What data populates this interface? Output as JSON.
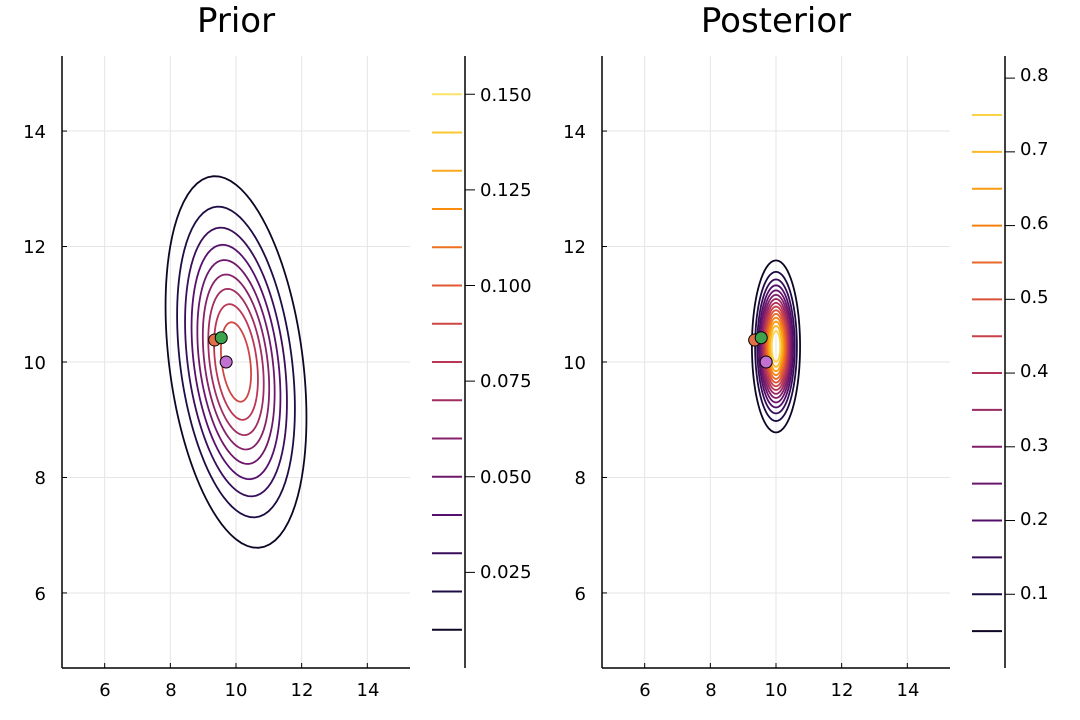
{
  "chart_data": [
    {
      "type": "contour",
      "title": "Prior",
      "xlabel": "",
      "ylabel": "",
      "xlim": [
        4.7,
        15.3
      ],
      "ylim": [
        4.7,
        15.3
      ],
      "xticks": [
        6,
        8,
        10,
        12,
        14
      ],
      "yticks": [
        6,
        8,
        10,
        12,
        14
      ],
      "grid": true,
      "colormap": "inferno",
      "colorbar": {
        "range": [
          0.0,
          0.16
        ],
        "ticks": [
          0.025,
          0.05,
          0.075,
          0.1,
          0.125,
          0.15
        ],
        "tick_labels": [
          "0.025",
          "0.050",
          "0.075",
          "0.100",
          "0.125",
          "0.150"
        ]
      },
      "contour_levels": [
        0.01,
        0.02,
        0.03,
        0.04,
        0.05,
        0.06,
        0.07,
        0.08,
        0.09,
        0.1,
        0.11,
        0.12,
        0.13,
        0.14,
        0.15
      ],
      "distribution": {
        "mean": [
          10.0,
          10.0
        ],
        "std": [
          1.0,
          1.5
        ],
        "corr": -0.3,
        "peak": 0.1
      },
      "points": [
        {
          "x": 9.7,
          "y": 10.0,
          "color": "#c271d2"
        },
        {
          "x": 9.35,
          "y": 10.38,
          "color": "#e26f46"
        },
        {
          "x": 9.55,
          "y": 10.42,
          "color": "#3da44d"
        }
      ]
    },
    {
      "type": "contour",
      "title": "Posterior",
      "xlabel": "",
      "ylabel": "",
      "xlim": [
        4.7,
        15.3
      ],
      "ylim": [
        4.7,
        15.3
      ],
      "xticks": [
        6,
        8,
        10,
        12,
        14
      ],
      "yticks": [
        6,
        8,
        10,
        12,
        14
      ],
      "grid": true,
      "colormap": "inferno",
      "colorbar": {
        "range": [
          0.0,
          0.83
        ],
        "ticks": [
          0.1,
          0.2,
          0.3,
          0.4,
          0.5,
          0.6,
          0.7,
          0.8
        ],
        "tick_labels": [
          "0.1",
          "0.2",
          "0.3",
          "0.4",
          "0.5",
          "0.6",
          "0.7",
          "0.8"
        ]
      },
      "contour_levels": [
        0.05,
        0.1,
        0.15,
        0.2,
        0.25,
        0.3,
        0.35,
        0.4,
        0.45,
        0.5,
        0.55,
        0.6,
        0.65,
        0.7,
        0.75
      ],
      "distribution": {
        "mean": [
          10.0,
          10.27
        ],
        "std": [
          0.31,
          0.63
        ],
        "corr": 0.0,
        "peak": 0.82
      },
      "points": [
        {
          "x": 9.7,
          "y": 10.0,
          "color": "#c271d2"
        },
        {
          "x": 9.35,
          "y": 10.38,
          "color": "#e26f46"
        },
        {
          "x": 9.55,
          "y": 10.42,
          "color": "#3da44d"
        }
      ]
    }
  ]
}
